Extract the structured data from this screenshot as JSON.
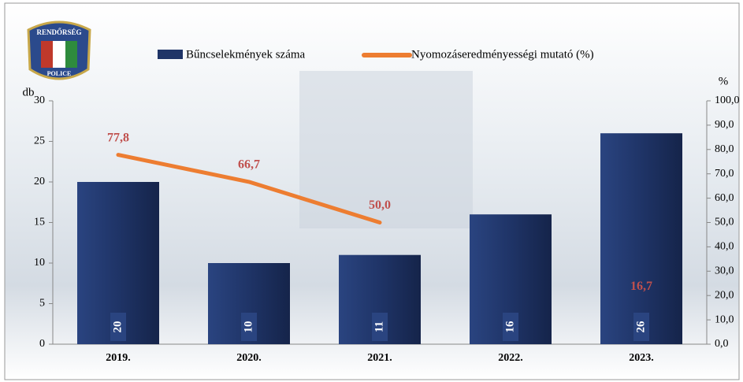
{
  "logo": {
    "top": "RENDŐRSÉG",
    "bottom": "POLICE"
  },
  "chart_data": {
    "type": "bar",
    "categories": [
      "2019.",
      "2020.",
      "2021.",
      "2022.",
      "2023."
    ],
    "y_axis_label": "db",
    "y2_axis_label": "%",
    "series": [
      {
        "name": "Bűncselekmények száma",
        "color": "#1f3467",
        "type": "bar",
        "values": [
          20,
          10,
          11,
          16,
          26
        ]
      },
      {
        "name": "Nyomozáseredményességi mutató (%)",
        "color": "#ed7d31",
        "type": "line",
        "axis": "y2",
        "values": [
          77.8,
          66.7,
          50.0,
          null,
          16.7
        ],
        "value_labels": [
          "77,8",
          "66,7",
          "50,0",
          null,
          "16,7"
        ],
        "label_color": "#c0504d"
      }
    ],
    "ylim": [
      0,
      30
    ],
    "yticks": [
      0,
      5,
      10,
      15,
      20,
      25,
      30
    ],
    "y2lim": [
      0,
      100
    ],
    "y2ticks": [
      {
        "value": 0,
        "label": "0,0"
      },
      {
        "value": 10,
        "label": "10,0"
      },
      {
        "value": 20,
        "label": "20,0"
      },
      {
        "value": 30,
        "label": "30,0"
      },
      {
        "value": 40,
        "label": "40,0"
      },
      {
        "value": 50,
        "label": "50,0"
      },
      {
        "value": 60,
        "label": "60,0"
      },
      {
        "value": 70,
        "label": "70,0"
      },
      {
        "value": 80,
        "label": "80,0"
      },
      {
        "value": 90,
        "label": "90,0"
      },
      {
        "value": 100,
        "label": "100,0"
      }
    ]
  }
}
